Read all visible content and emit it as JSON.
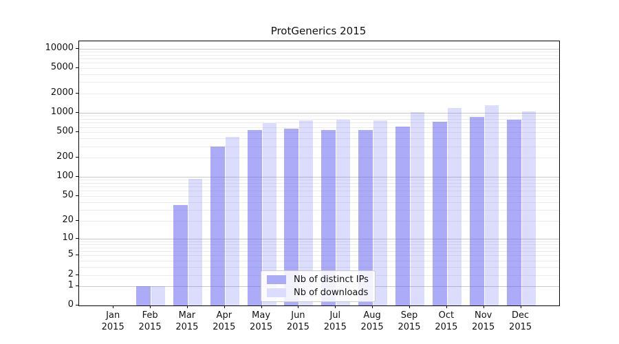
{
  "chart_data": {
    "type": "bar",
    "title": "ProtGenerics 2015",
    "categories": [
      "Jan 2015",
      "Feb 2015",
      "Mar 2015",
      "Apr 2015",
      "May 2015",
      "Jun 2015",
      "Jul 2015",
      "Aug 2015",
      "Sep 2015",
      "Oct 2015",
      "Nov 2015",
      "Dec 2015"
    ],
    "series": [
      {
        "name": "Nb of distinct IPs",
        "swatch_color": "#ababf7",
        "fill": "rgba(88,88,240,0.50)",
        "values": [
          0,
          1,
          36,
          300,
          540,
          570,
          540,
          545,
          610,
          730,
          865,
          780
        ]
      },
      {
        "name": "Nb of downloads",
        "swatch_color": "#dcdcfc",
        "fill": "rgba(88,88,240,0.21)",
        "values": [
          0,
          1,
          92,
          420,
          690,
          760,
          780,
          765,
          1015,
          1195,
          1300,
          1040
        ]
      }
    ],
    "yticks": [
      0,
      1,
      2,
      5,
      10,
      20,
      50,
      100,
      200,
      500,
      1000,
      2000,
      5000,
      10000
    ],
    "yscale": "log1p",
    "ylim": [
      0,
      13000
    ],
    "xlabel": "",
    "ylabel": "",
    "grid": "horizontal",
    "legend_position": "lower-center",
    "colors": {
      "grid_major": "#c9c9c9",
      "grid_minor": "#ececec",
      "axis": "#000000",
      "text": "#111111"
    }
  }
}
